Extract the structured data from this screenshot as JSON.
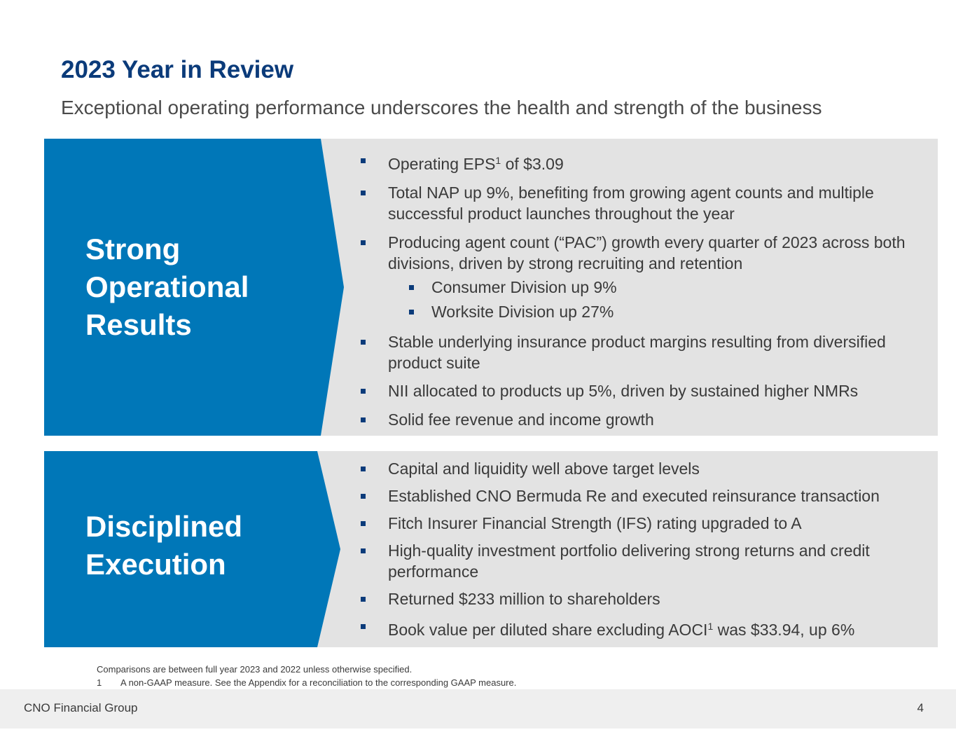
{
  "header": {
    "title": "2023 Year in Review",
    "subtitle": "Exceptional operating performance underscores the health and strength of the business"
  },
  "colors": {
    "accent_blue": "#0077b8",
    "title_navy": "#0b3b7a",
    "panel_gray": "#e3e3e3"
  },
  "sections": [
    {
      "label_lines": [
        "Strong",
        "Operational",
        "Results"
      ],
      "bullets": [
        {
          "pre": "Operating EPS",
          "sup": "1",
          "post": " of $3.09"
        },
        {
          "text": "Total NAP up 9%, benefiting from growing agent counts and multiple successful product launches throughout the year"
        },
        {
          "text": "Producing agent count (“PAC”) growth every quarter of 2023 across both divisions, driven by strong recruiting and retention"
        },
        {
          "text": "Consumer Division up 9%"
        },
        {
          "text": "Worksite Division up 27%"
        },
        {
          "text": "Stable underlying insurance product margins resulting from diversified product suite"
        },
        {
          "text": "NII allocated to products up 5%, driven by sustained higher NMRs"
        },
        {
          "text": "Solid fee revenue and income growth"
        }
      ]
    },
    {
      "label_lines": [
        "Disciplined",
        "Execution"
      ],
      "bullets": [
        {
          "text": "Capital and liquidity well above target levels"
        },
        {
          "text": "Established CNO Bermuda Re and executed reinsurance transaction"
        },
        {
          "text": "Fitch Insurer Financial Strength (IFS) rating upgraded to A"
        },
        {
          "text": "High-quality investment portfolio delivering strong returns and credit performance"
        },
        {
          "text": "Returned $233 million to shareholders"
        },
        {
          "pre": "Book value per diluted share excluding AOCI",
          "sup": "1",
          "post": " was $33.94, up 6%"
        }
      ]
    }
  ],
  "footnotes": {
    "note": "Comparisons are between full year 2023 and 2022 unless otherwise specified.",
    "n1_num": "1",
    "n1_text": "A non-GAAP measure. See the Appendix for a reconciliation to the corresponding GAAP measure."
  },
  "footer": {
    "company": "CNO Financial Group",
    "page": "4"
  }
}
